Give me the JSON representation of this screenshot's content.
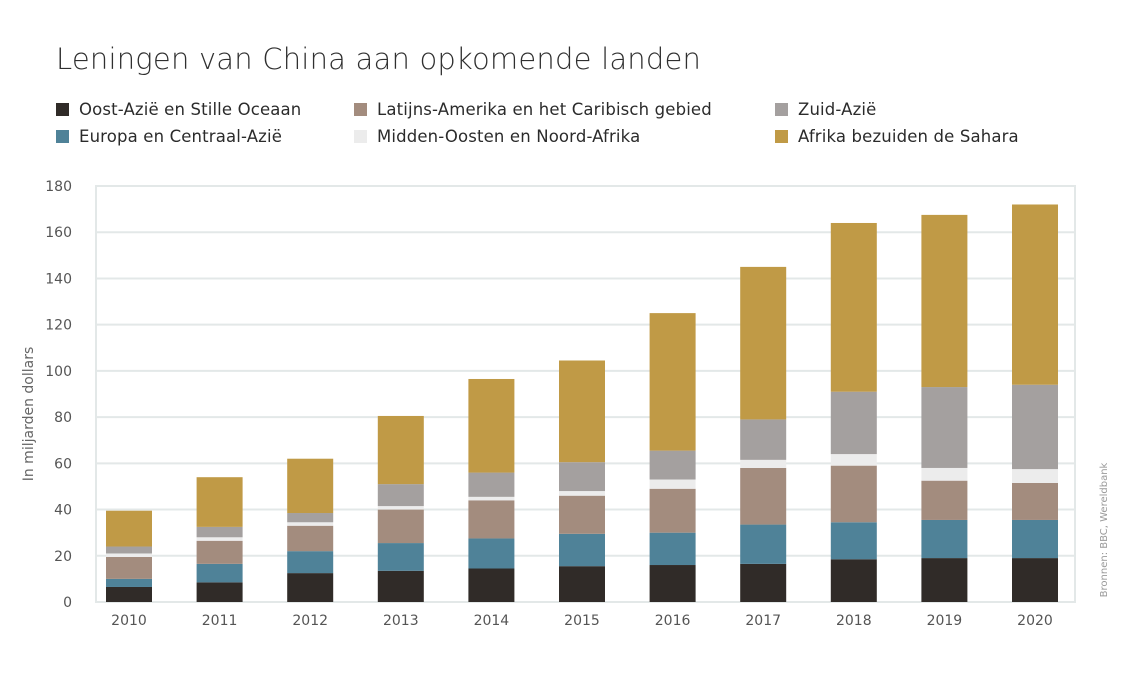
{
  "chart_data": {
    "type": "bar",
    "stacked": true,
    "title": "Leningen van China aan opkomende landen",
    "ylabel": "In miljarden dollars",
    "xlabel": "",
    "ylim": [
      0,
      180
    ],
    "yticks": [
      0,
      20,
      40,
      60,
      80,
      100,
      120,
      140,
      160,
      180
    ],
    "grid": true,
    "legend_position": "top",
    "source": "Bronnen: BBC, Wereldbank",
    "categories": [
      "2010",
      "2011",
      "2012",
      "2013",
      "2014",
      "2015",
      "2016",
      "2017",
      "2018",
      "2019",
      "2020"
    ],
    "series": [
      {
        "name": "Oost-Azië en Stille Oceaan",
        "color": "#302b28",
        "values": [
          6.5,
          8.5,
          12.5,
          13.5,
          14.5,
          15.5,
          16,
          16.5,
          18.5,
          19,
          19
        ]
      },
      {
        "name": "Europa en Centraal-Azië",
        "color": "#4f8298",
        "values": [
          3.5,
          8,
          9.5,
          12,
          13,
          14,
          14,
          17,
          16,
          16.5,
          16.5
        ]
      },
      {
        "name": "Latijns-Amerika en het Caribisch gebied",
        "color": "#a38c7e",
        "values": [
          9.5,
          10,
          11,
          14.5,
          16.5,
          16.5,
          19,
          24.5,
          24.5,
          17,
          16
        ]
      },
      {
        "name": "Midden-Oosten en Noord-Afrika",
        "color": "#ececec",
        "values": [
          1.5,
          1.5,
          1.5,
          1.5,
          1.5,
          2,
          4,
          3.5,
          5,
          5.5,
          6
        ]
      },
      {
        "name": "Zuid-Azië",
        "color": "#a4a09f",
        "values": [
          3,
          4.5,
          4,
          9.5,
          10.5,
          12.5,
          12.5,
          17.5,
          27,
          35,
          36.5
        ]
      },
      {
        "name": "Afrika bezuiden de Sahara",
        "color": "#c09a46",
        "values": [
          15.5,
          21.5,
          23.5,
          29.5,
          40.5,
          44,
          59.5,
          66,
          73,
          74.5,
          78
        ]
      }
    ]
  }
}
